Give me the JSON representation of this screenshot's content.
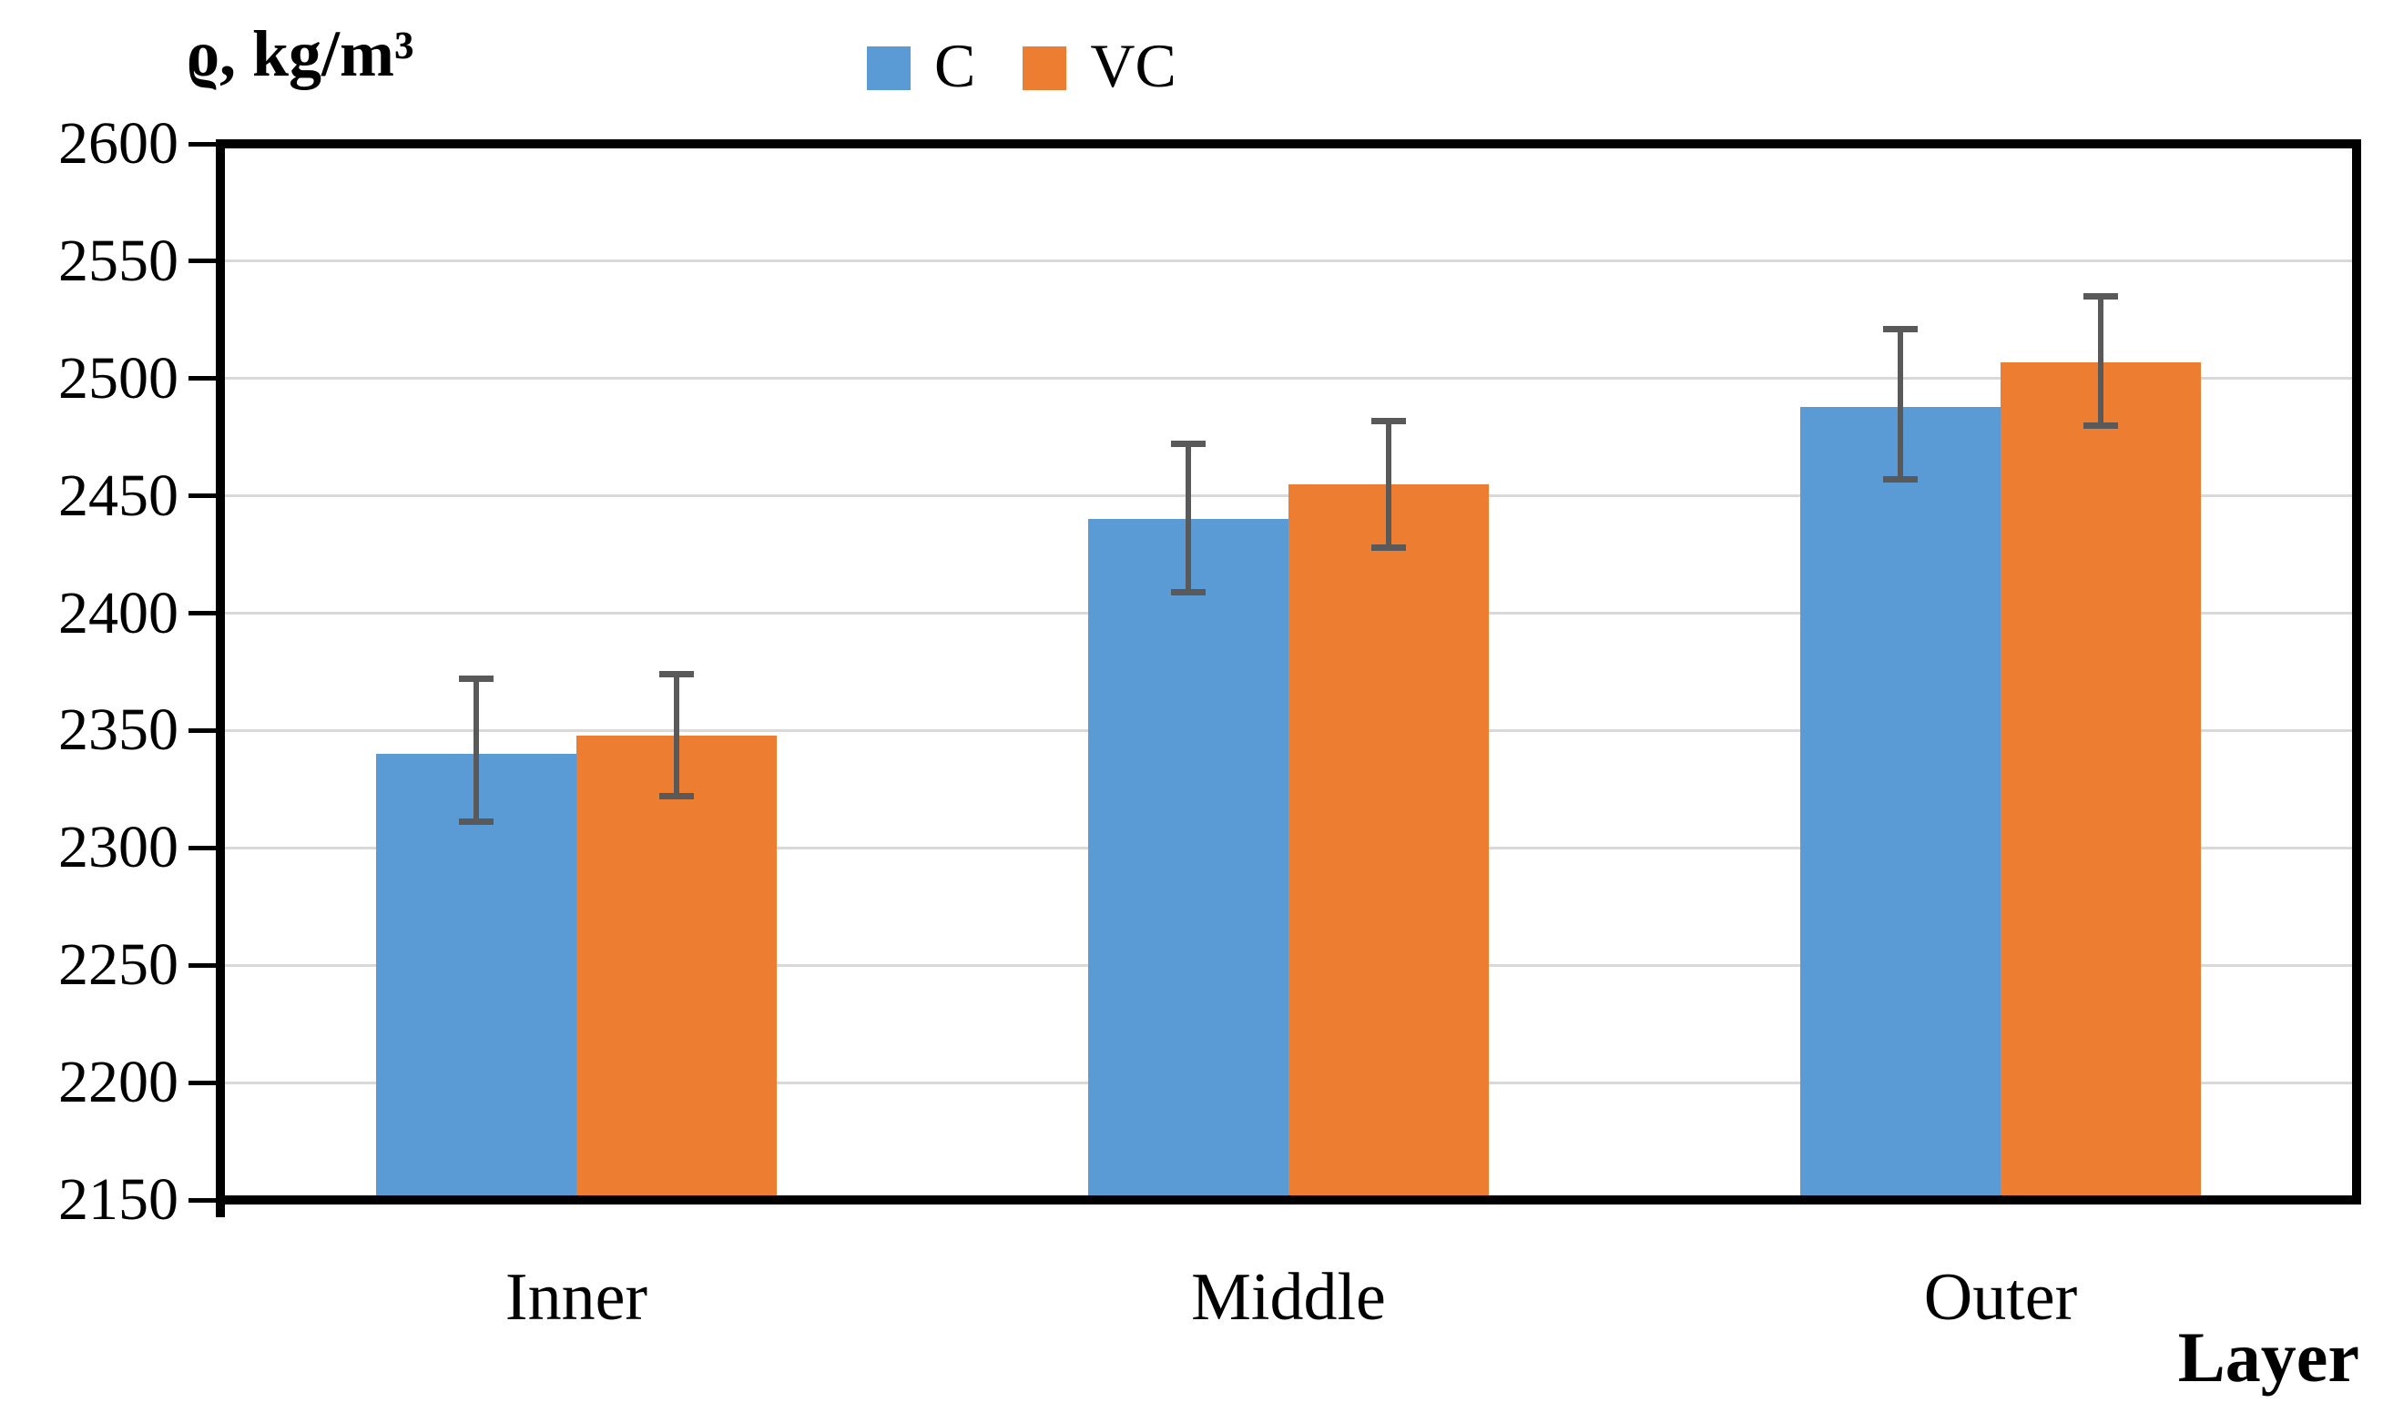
{
  "figure": {
    "y_axis_title": "ϱ, kg/m³",
    "x_axis_title": "Layer"
  },
  "chart_data": {
    "type": "bar",
    "title": "",
    "ylabel": "ϱ, kg/m³",
    "xlabel": "Layer",
    "categories": [
      "Inner",
      "Middle",
      "Outer"
    ],
    "series": [
      {
        "name": "C",
        "color": "#5B9BD5",
        "values": [
          2340,
          2440,
          2488
        ],
        "error_top": [
          2372,
          2472,
          2521
        ],
        "error_bottom": [
          2311,
          2409,
          2457
        ]
      },
      {
        "name": "VC",
        "color": "#ED7D31",
        "values": [
          2348,
          2455,
          2507
        ],
        "error_top": [
          2374,
          2482,
          2535
        ],
        "error_bottom": [
          2322,
          2428,
          2480
        ]
      }
    ],
    "ylim": [
      2150,
      2600
    ],
    "ytick_step": 50,
    "grid": true,
    "legend_position": "top-center",
    "gridline_color": "#D9D9D9",
    "error_bar_color": "#595959",
    "axis_color": "#000000",
    "background_color": "#FFFFFF"
  }
}
